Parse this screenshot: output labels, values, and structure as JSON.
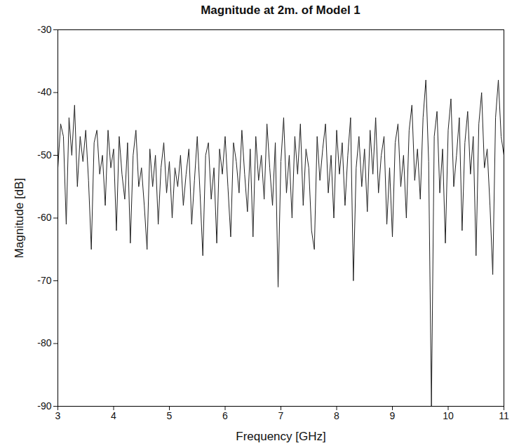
{
  "chart_data": {
    "type": "line",
    "title": "Magnitude at 2m. of Model 1",
    "x_label": "Frequency [GHz]",
    "y_label": "Magnitude [dB]",
    "color": "#222222",
    "grid": false,
    "xlim": [
      3,
      11
    ],
    "xticks": [
      3,
      4,
      5,
      6,
      7,
      8,
      9,
      10,
      11
    ],
    "ylim": [
      -90,
      -30
    ],
    "yticks": [
      -90,
      -80,
      -70,
      -60,
      -50,
      -40,
      -30
    ],
    "x": [
      3.0,
      3.05,
      3.1,
      3.15,
      3.2,
      3.25,
      3.3,
      3.35,
      3.4,
      3.45,
      3.5,
      3.55,
      3.6,
      3.65,
      3.7,
      3.75,
      3.8,
      3.85,
      3.9,
      3.95,
      4.0,
      4.05,
      4.1,
      4.15,
      4.2,
      4.25,
      4.3,
      4.35,
      4.4,
      4.45,
      4.5,
      4.55,
      4.6,
      4.65,
      4.7,
      4.75,
      4.8,
      4.85,
      4.9,
      4.95,
      5.0,
      5.05,
      5.1,
      5.15,
      5.2,
      5.25,
      5.3,
      5.35,
      5.4,
      5.45,
      5.5,
      5.55,
      5.6,
      5.65,
      5.7,
      5.75,
      5.8,
      5.85,
      5.9,
      5.95,
      6.0,
      6.05,
      6.1,
      6.15,
      6.2,
      6.25,
      6.3,
      6.35,
      6.4,
      6.45,
      6.5,
      6.55,
      6.6,
      6.65,
      6.7,
      6.75,
      6.8,
      6.85,
      6.9,
      6.95,
      7.0,
      7.05,
      7.1,
      7.15,
      7.2,
      7.25,
      7.3,
      7.35,
      7.4,
      7.45,
      7.5,
      7.55,
      7.6,
      7.65,
      7.7,
      7.75,
      7.8,
      7.85,
      7.9,
      7.95,
      8.0,
      8.05,
      8.1,
      8.15,
      8.2,
      8.25,
      8.3,
      8.35,
      8.4,
      8.45,
      8.5,
      8.55,
      8.6,
      8.65,
      8.7,
      8.75,
      8.8,
      8.85,
      8.9,
      8.95,
      9.0,
      9.05,
      9.1,
      9.15,
      9.2,
      9.25,
      9.3,
      9.35,
      9.4,
      9.45,
      9.5,
      9.55,
      9.6,
      9.65,
      9.7,
      9.75,
      9.8,
      9.85,
      9.9,
      9.95,
      10.0,
      10.05,
      10.1,
      10.15,
      10.2,
      10.25,
      10.3,
      10.35,
      10.4,
      10.45,
      10.5,
      10.55,
      10.6,
      10.65,
      10.7,
      10.75,
      10.8,
      10.85,
      10.9,
      10.95,
      11.0
    ],
    "values": [
      -52,
      -45,
      -47,
      -61,
      -44,
      -50,
      -42,
      -55,
      -47,
      -51,
      -46,
      -54,
      -65,
      -48,
      -46,
      -53,
      -50,
      -58,
      -46,
      -52,
      -49,
      -62,
      -47,
      -53,
      -57,
      -48,
      -64,
      -50,
      -46,
      -55,
      -52,
      -58,
      -65,
      -49,
      -55,
      -50,
      -61,
      -52,
      -48,
      -56,
      -51,
      -60,
      -52,
      -55,
      -50,
      -58,
      -53,
      -49,
      -61,
      -54,
      -47,
      -56,
      -66,
      -50,
      -48,
      -57,
      -52,
      -64,
      -49,
      -53,
      -47,
      -55,
      -63,
      -48,
      -51,
      -56,
      -46,
      -53,
      -59,
      -49,
      -63,
      -47,
      -54,
      -50,
      -57,
      -45,
      -52,
      -58,
      -48,
      -71,
      -51,
      -44,
      -56,
      -50,
      -60,
      -47,
      -53,
      -45,
      -58,
      -49,
      -52,
      -62,
      -65,
      -47,
      -54,
      -49,
      -45,
      -56,
      -50,
      -60,
      -46,
      -53,
      -48,
      -58,
      -50,
      -44,
      -70,
      -52,
      -47,
      -55,
      -49,
      -59,
      -46,
      -53,
      -44,
      -56,
      -50,
      -47,
      -61,
      -52,
      -63,
      -48,
      -45,
      -55,
      -50,
      -60,
      -46,
      -42,
      -54,
      -49,
      -57,
      -44,
      -38,
      -51,
      -90,
      -47,
      -43,
      -56,
      -49,
      -64,
      -46,
      -41,
      -55,
      -50,
      -44,
      -62,
      -48,
      -43,
      -53,
      -47,
      -66,
      -45,
      -40,
      -52,
      -49,
      -58,
      -69,
      -44,
      -38,
      -47,
      -50
    ]
  }
}
